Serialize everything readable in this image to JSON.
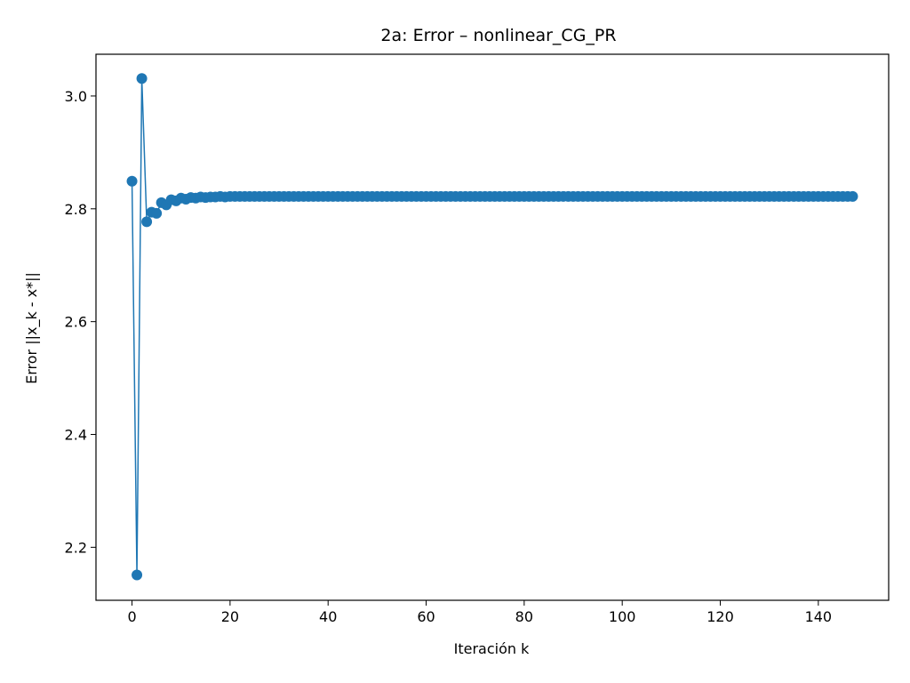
{
  "chart_data": {
    "type": "line",
    "title": "2a: Error – nonlinear_CG_PR",
    "xlabel": "Iteración k",
    "ylabel": "Error ||x_k - x*||",
    "xlim": [
      -7.35,
      154.35
    ],
    "ylim": [
      2.106,
      3.074
    ],
    "xticks": [
      0,
      20,
      40,
      60,
      80,
      100,
      120,
      140
    ],
    "yticks": [
      2.2,
      2.4,
      2.6,
      2.8,
      3.0
    ],
    "xtick_labels": [
      "0",
      "20",
      "40",
      "60",
      "80",
      "100",
      "120",
      "140"
    ],
    "ytick_labels": [
      "2.2",
      "2.4",
      "2.6",
      "2.8",
      "3.0"
    ],
    "grid": false,
    "color": "#1f77b4",
    "marker": "circle",
    "series": [
      {
        "x": [
          0,
          1,
          2,
          3,
          4,
          5,
          6,
          7,
          8,
          9,
          10,
          11,
          12,
          13,
          14,
          15,
          16,
          17,
          18,
          19,
          20,
          21,
          22,
          23,
          24,
          25,
          26,
          27
        ],
        "values": [
          2.849,
          2.151,
          3.031,
          2.777,
          2.794,
          2.792,
          2.811,
          2.807,
          2.816,
          2.814,
          2.819,
          2.817,
          2.82,
          2.819,
          2.821,
          2.82,
          2.821,
          2.821,
          2.822,
          2.821,
          2.822,
          2.822,
          2.822,
          2.822,
          2.822,
          2.822,
          2.822,
          2.822
        ],
        "tail_from": 28,
        "tail_to": 147,
        "tail_value": 2.822
      }
    ]
  }
}
